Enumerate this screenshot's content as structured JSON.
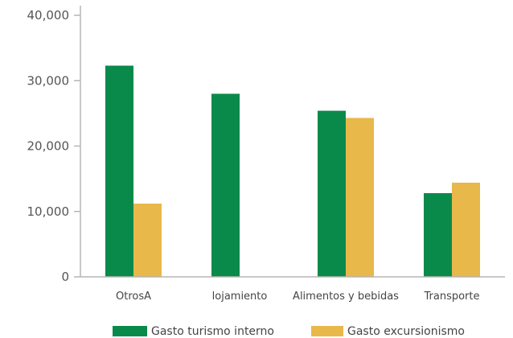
{
  "chart_data": {
    "type": "bar",
    "title": "",
    "xlabel": "",
    "ylabel": "",
    "categories": [
      "OtrosA",
      "lojamiento",
      "Alimentos y bebidas",
      "Transporte"
    ],
    "series": [
      {
        "name": "Gasto turismo interno",
        "color": "#0a8a4a",
        "values": [
          32300,
          28000,
          25400,
          12800
        ]
      },
      {
        "name": "Gasto excursionismo",
        "color": "#e8b84b",
        "values": [
          11200,
          null,
          24300,
          14400
        ]
      }
    ],
    "ylim": [
      0,
      40000
    ],
    "yticks": [
      0,
      10000,
      20000,
      30000,
      40000
    ],
    "ytick_labels": [
      "0",
      "10,000",
      "20,000",
      "30,000",
      "40,000"
    ],
    "grid": false,
    "legend_position": "bottom"
  }
}
